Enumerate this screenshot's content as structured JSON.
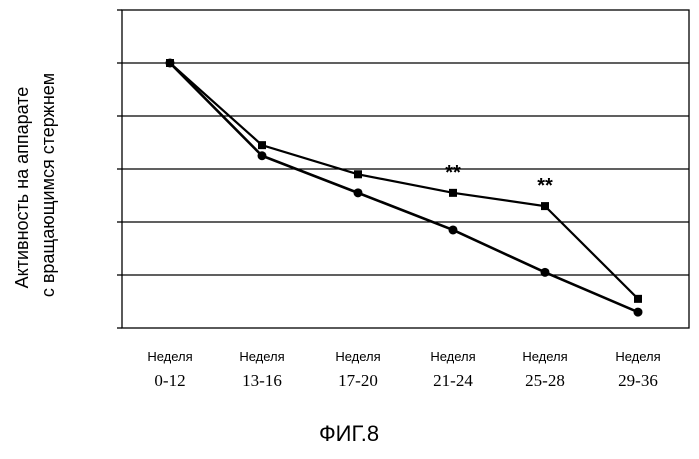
{
  "chart_data": {
    "type": "line",
    "categories": [
      [
        "Неделя",
        "0-12"
      ],
      [
        "Неделя",
        "13-16"
      ],
      [
        "Неделя",
        "17-20"
      ],
      [
        "Неделя",
        "21-24"
      ],
      [
        "Неделя",
        "25-28"
      ],
      [
        "Неделя",
        "29-36"
      ]
    ],
    "series": [
      {
        "marker": "square",
        "color": "#000000",
        "values": [
          5.0,
          3.45,
          2.9,
          2.55,
          2.3,
          0.55
        ]
      },
      {
        "marker": "circle",
        "color": "#000000",
        "values": [
          5.0,
          3.25,
          2.55,
          1.85,
          1.05,
          0.3
        ]
      }
    ],
    "ylabel_lines": [
      "Активность на аппарате",
      "с вращающимся стержнем"
    ],
    "ylim": [
      0,
      6
    ],
    "grid": true,
    "annotations": [
      {
        "text": "**",
        "category_index": 3,
        "series_index": 0
      },
      {
        "text": "**",
        "category_index": 4,
        "series_index": 0
      }
    ]
  },
  "caption": "ФИГ.8"
}
